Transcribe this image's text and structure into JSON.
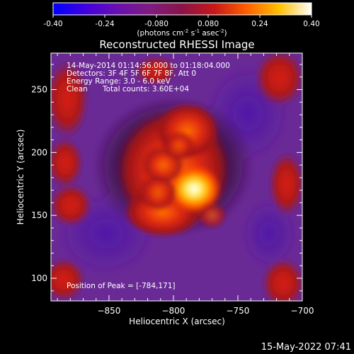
{
  "chart_data": {
    "type": "heatmap",
    "title": "Reconstructed RHESSI Image",
    "xlabel": "Heliocentric X (arcsec)",
    "ylabel": "Heliocentric Y (arcsec)",
    "xlim": [
      -895,
      -700
    ],
    "ylim": [
      82,
      279
    ],
    "xticks": [
      -850,
      -800,
      -750,
      -700
    ],
    "yticks": [
      100,
      150,
      200,
      250
    ],
    "colorbar": {
      "range": [
        -0.4,
        0.4
      ],
      "ticks": [
        "-0.40",
        "-0.24",
        "-0.080",
        "0.080",
        "0.24",
        "0.40"
      ],
      "tick_values": [
        -0.4,
        -0.24,
        -0.08,
        0.08,
        0.24,
        0.4
      ],
      "label_main": "(photons cm",
      "label_exp1": "-2",
      "label_mid": " s",
      "label_exp2": "-1",
      "label_end": " asec",
      "label_exp3": "-2",
      "label_close": ")",
      "colors": [
        "#0000ff",
        "#5a00c8",
        "#7a2a9a",
        "#8a1a5a",
        "#c01818",
        "#ff5a00",
        "#ffb000",
        "#ffff80",
        "#ffffff"
      ]
    },
    "annotations": {
      "time_range": "14-May-2014 01:14:56.000 to 01:18:04.000",
      "detectors": "Detectors: 3F 4F 5F 6F 7F 8F, Att 0",
      "energy": "Energy Range: 3.0 - 6.0 keV",
      "method": "Clean",
      "counts": "Total counts: 3.60E+04",
      "peak": "Position of Peak = [-784,171]"
    },
    "peak_position": [
      -784,
      171
    ],
    "sources": [
      {
        "x": -784,
        "y": 171,
        "peak": 0.4
      },
      {
        "x": -808,
        "y": 190,
        "peak": 0.26
      },
      {
        "x": -812,
        "y": 168,
        "peak": 0.22
      },
      {
        "x": -796,
        "y": 205,
        "peak": 0.14
      },
      {
        "x": -770,
        "y": 150,
        "peak": 0.1
      }
    ]
  },
  "footer": {
    "timestamp": "15-May-2022 07:41"
  }
}
